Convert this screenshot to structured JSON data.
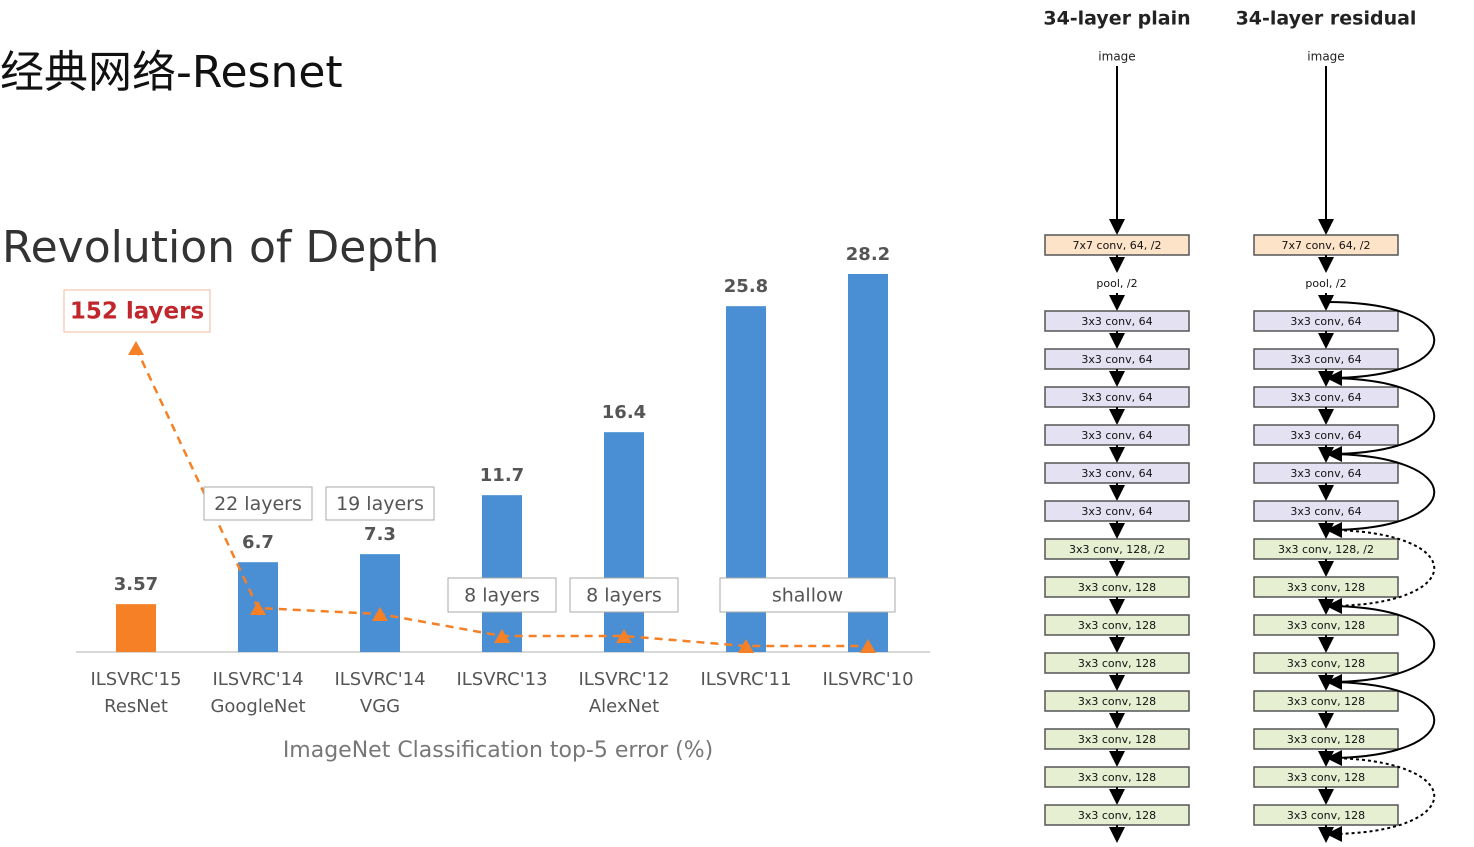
{
  "header": {
    "title": "经典网络-Resnet"
  },
  "chart_data": {
    "type": "bar",
    "title": "Revolution of Depth",
    "categories": [
      "ILSVRC'15",
      "ILSVRC'14",
      "ILSVRC'14",
      "ILSVRC'13",
      "ILSVRC'12",
      "ILSVRC'11",
      "ILSVRC'10"
    ],
    "networks": [
      "ResNet",
      "GoogleNet",
      "VGG",
      null,
      "AlexNet",
      null,
      null
    ],
    "values": [
      3.57,
      6.7,
      7.3,
      11.7,
      16.4,
      25.8,
      28.2
    ],
    "colors": [
      "#f58025",
      "#4a8fd4",
      "#4a8fd4",
      "#4a8fd4",
      "#4a8fd4",
      "#4a8fd4",
      "#4a8fd4"
    ],
    "depth_labels": [
      "152 layers",
      "22 layers",
      "19 layers",
      "8 layers",
      "8 layers",
      "shallow"
    ],
    "x_label": "ImageNet Classification top-5 error (%)"
  },
  "diagram": {
    "columns": [
      {
        "title": "34-layer plain",
        "input": "image",
        "layers": [
          "7x7 conv, 64, /2",
          "pool, /2",
          "3x3 conv, 64",
          "3x3 conv, 64",
          "3x3 conv, 64",
          "3x3 conv, 64",
          "3x3 conv, 64",
          "3x3 conv, 64",
          "3x3 conv, 128, /2",
          "3x3 conv, 128",
          "3x3 conv, 128",
          "3x3 conv, 128",
          "3x3 conv, 128",
          "3x3 conv, 128",
          "3x3 conv, 128",
          "3x3 conv, 128"
        ]
      },
      {
        "title": "34-layer residual",
        "input": "image",
        "layers": [
          "7x7 conv, 64, /2",
          "pool, /2",
          "3x3 conv, 64",
          "3x3 conv, 64",
          "3x3 conv, 64",
          "3x3 conv, 64",
          "3x3 conv, 64",
          "3x3 conv, 64",
          "3x3 conv, 128, /2",
          "3x3 conv, 128",
          "3x3 conv, 128",
          "3x3 conv, 128",
          "3x3 conv, 128",
          "3x3 conv, 128",
          "3x3 conv, 128",
          "3x3 conv, 128"
        ]
      }
    ]
  }
}
